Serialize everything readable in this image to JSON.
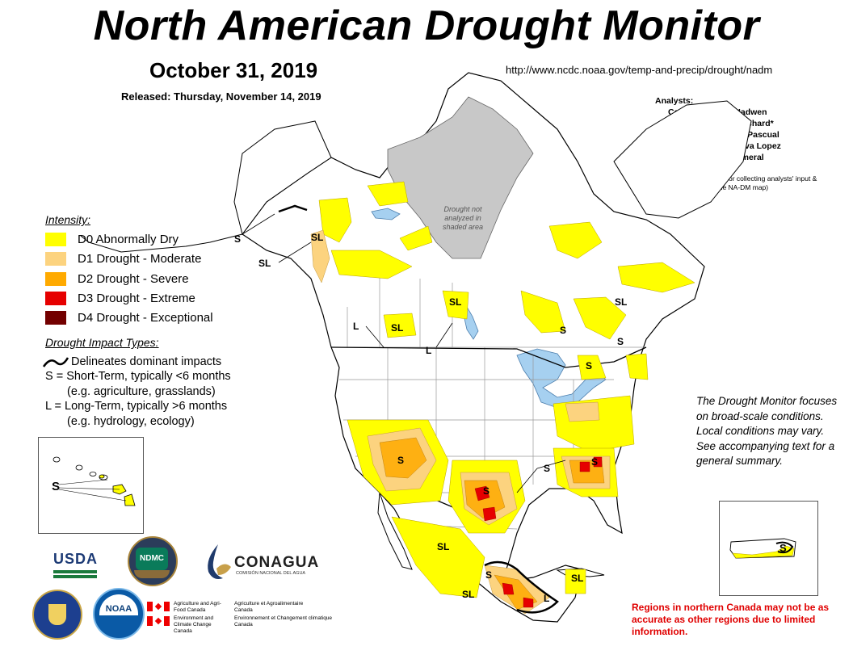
{
  "title": "North American Drought Monitor",
  "date": "October 31, 2019",
  "released": "Released:  Thursday, November 14, 2019",
  "url": "http://www.ncdc.noaa.gov/temp-and-precip/drought/nadm",
  "analysts": {
    "heading": "Analysts:",
    "rows": [
      "Canada - Trevor Hadwen",
      "Laura Richard*",
      "Mexico - Reynaldo Pascual",
      "Minerva Lopez",
      "U.S.A. - David Simeral"
    ],
    "note": "(* Responsible for collecting analysts' input & assembling the NA-DM map)"
  },
  "intensity": {
    "title": "Intensity:",
    "items": [
      {
        "label": "D0 Abnormally Dry",
        "color": "#ffff00"
      },
      {
        "label": "D1 Drought - Moderate",
        "color": "#fcd37f"
      },
      {
        "label": "D2 Drought - Severe",
        "color": "#ffaa00"
      },
      {
        "label": "D3 Drought - Extreme",
        "color": "#e60000"
      },
      {
        "label": "D4 Drought - Exceptional",
        "color": "#730000"
      }
    ]
  },
  "impacts": {
    "title": "Drought Impact Types:",
    "delineates": "Delineates dominant impacts",
    "short_term": "S = Short-Term, typically <6 months",
    "short_term_eg": "(e.g. agriculture, grasslands)",
    "long_term": "L = Long-Term, typically >6 months",
    "long_term_eg": "(e.g. hydrology, ecology)"
  },
  "dm_note": "The Drought Monitor focuses on broad-scale conditions.  Local conditions may vary.  See accompanying text for a general summary.",
  "red_note": "Regions in northern Canada may not be as accurate as other regions due to limited information.",
  "not_analyzed": "Drought not analyzed in shaded area",
  "map_labels": {
    "s": "S",
    "l": "L",
    "sl": "SL",
    "hawaii": "S",
    "puerto_rico": "S"
  },
  "logos": {
    "usda": "USDA",
    "ndmc": "NDMC",
    "conagua": "CONAGUA",
    "conagua_sub": "COMISIÓN NACIONAL DEL AGUA",
    "noaa": "NOAA",
    "agri_en": "Agriculture and Agri-Food Canada",
    "agri_fr": "Agriculture et Agroalimentaire Canada",
    "env_en": "Environment and Climate Change Canada",
    "env_fr": "Environnement et Changement climatique Canada"
  },
  "colors": {
    "land": "#ffffff",
    "water": "#a6d0f0",
    "not_analyzed": "#c8c8c8",
    "border": "#000000",
    "state_lines": "#999999"
  }
}
